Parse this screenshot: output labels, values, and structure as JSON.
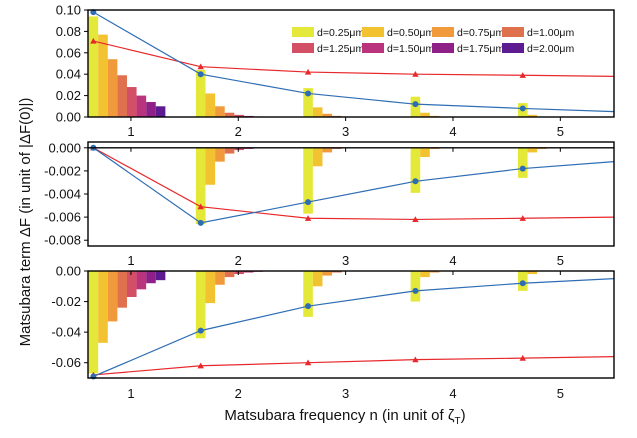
{
  "chart_data": {
    "type": "bar",
    "xlabel": "Matsubara frequency n (in unit of ζ",
    "xlabel_sub": "T",
    "xlabel_close": ")",
    "ylabel": "Matsubara term  ΔF (in unit of |ΔF(0)|)",
    "xlim": [
      0.6,
      5.5
    ],
    "xticks": [
      "1",
      "2",
      "3",
      "4",
      "5"
    ],
    "bar_groups_x": [
      0.65,
      1.65,
      2.65,
      3.65,
      4.65
    ],
    "series": [
      {
        "name": "d=0.25μm",
        "color": "#e4e838"
      },
      {
        "name": "d=0.50μm",
        "color": "#f2c230"
      },
      {
        "name": "d=0.75μm",
        "color": "#f19a3b"
      },
      {
        "name": "d=1.00μm",
        "color": "#e0714f"
      },
      {
        "name": "d=1.25μm",
        "color": "#d24f66"
      },
      {
        "name": "d=1.50μm",
        "color": "#b9347d"
      },
      {
        "name": "d=1.75μm",
        "color": "#8e2087"
      },
      {
        "name": "d=2.00μm",
        "color": "#5d1a91"
      }
    ],
    "legend_position": "top-right",
    "line_x": [
      0.65,
      1.65,
      2.65,
      3.65,
      4.65,
      5.5
    ],
    "panels": [
      {
        "ylim": [
          0,
          0.1
        ],
        "yticks": [
          "0.00",
          "0.02",
          "0.04",
          "0.06",
          "0.08",
          "0.10"
        ],
        "ytick_values": [
          0,
          0.02,
          0.04,
          0.06,
          0.08,
          0.1
        ],
        "bars": [
          [
            0.094,
            0.077,
            0.054,
            0.039,
            0.028,
            0.02,
            0.014,
            0.01
          ],
          [
            0.044,
            0.022,
            0.01,
            0.004,
            0.002,
            0.001,
            0.0005,
            0.0003
          ],
          [
            0.027,
            0.009,
            0.003,
            0.001,
            0.0003,
            0.0001,
            0,
            0
          ],
          [
            0.019,
            0.004,
            0.001,
            0.0002,
            0,
            0,
            0,
            0
          ],
          [
            0.013,
            0.002,
            0.0003,
            0,
            0,
            0,
            0,
            0
          ]
        ],
        "blue_line": [
          0.098,
          0.04,
          0.022,
          0.012,
          0.008,
          0.005
        ],
        "red_line": [
          0.071,
          0.047,
          0.042,
          0.04,
          0.039,
          0.038
        ]
      },
      {
        "ylim": [
          -0.0085,
          0.0005
        ],
        "yticks": [
          "0.000",
          "-0.002",
          "-0.004",
          "-0.006",
          "-0.008"
        ],
        "ytick_values": [
          0,
          -0.002,
          -0.004,
          -0.006,
          -0.008
        ],
        "bars": [
          [
            0,
            0,
            0,
            0,
            0,
            0,
            0,
            0
          ],
          [
            -0.0066,
            -0.0032,
            -0.0012,
            -0.0005,
            -0.0002,
            -0.0001,
            0,
            0
          ],
          [
            -0.0057,
            -0.0016,
            -0.0004,
            -0.0001,
            0,
            0,
            0,
            0
          ],
          [
            -0.0039,
            -0.0008,
            -0.0001,
            0,
            0,
            0,
            0,
            0
          ],
          [
            -0.0026,
            -0.0004,
            -0.0001,
            0,
            0,
            0,
            0,
            0
          ]
        ],
        "blue_line": [
          0.0,
          -0.0065,
          -0.0047,
          -0.0029,
          -0.0018,
          -0.0012
        ],
        "red_line": [
          0.0,
          -0.0051,
          -0.0061,
          -0.0062,
          -0.0061,
          -0.006
        ]
      },
      {
        "ylim": [
          -0.07,
          0.0
        ],
        "yticks": [
          "0.00",
          "-0.02",
          "-0.04",
          "-0.06"
        ],
        "ytick_values": [
          0,
          -0.02,
          -0.04,
          -0.06
        ],
        "bars": [
          [
            -0.067,
            -0.047,
            -0.033,
            -0.024,
            -0.017,
            -0.012,
            -0.008,
            -0.006
          ],
          [
            -0.044,
            -0.021,
            -0.009,
            -0.004,
            -0.002,
            -0.001,
            -0.0005,
            -0.0003
          ],
          [
            -0.03,
            -0.01,
            -0.003,
            -0.001,
            -0.0003,
            0,
            0,
            0
          ],
          [
            -0.02,
            -0.004,
            -0.001,
            -0.0002,
            0,
            0,
            0,
            0
          ],
          [
            -0.013,
            -0.002,
            -0.0003,
            0,
            0,
            0,
            0,
            0
          ]
        ],
        "blue_line": [
          -0.069,
          -0.039,
          -0.023,
          -0.013,
          -0.008,
          -0.005
        ],
        "red_line": [
          -0.068,
          -0.062,
          -0.06,
          -0.058,
          -0.057,
          -0.056
        ]
      }
    ],
    "line_colors": {
      "blue": "#2e6db4",
      "red": "#e8282b"
    }
  }
}
